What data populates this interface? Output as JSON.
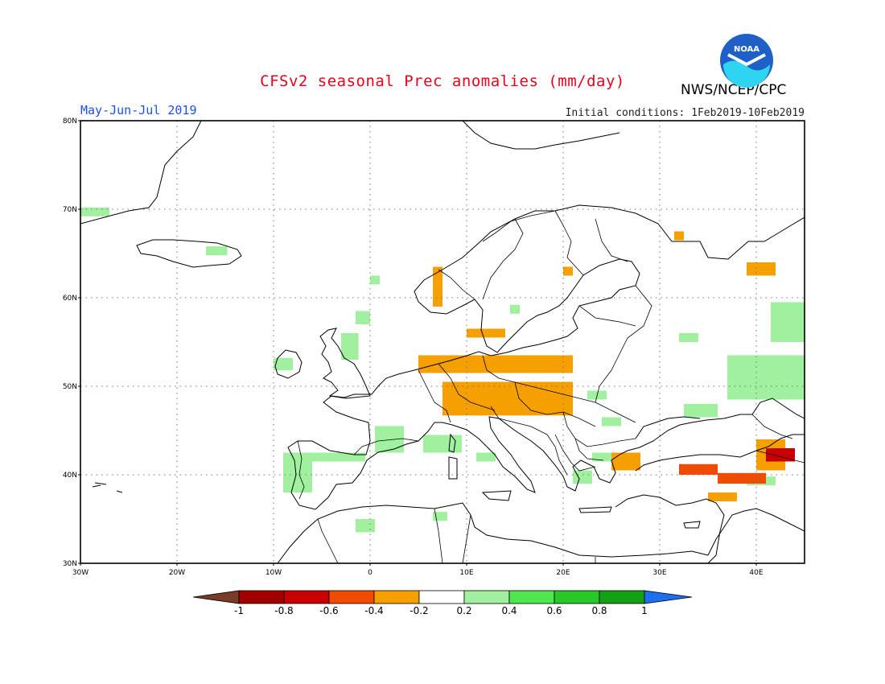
{
  "header": {
    "title": "CFSv2 seasonal Prec anomalies (mm/day)",
    "agency": "NWS/NCEP/CPC",
    "period": "May-Jun-Jul 2019",
    "initial_conditions": "Initial conditions: 1Feb2019-10Feb2019",
    "logo_text": "NOAA",
    "logo_icon": "noaa-logo-icon"
  },
  "map": {
    "lon_range": [
      -30,
      45
    ],
    "lat_range": [
      30,
      80
    ],
    "lon_ticks": [
      {
        "value": -30,
        "label": "30W"
      },
      {
        "value": -20,
        "label": "20W"
      },
      {
        "value": -10,
        "label": "10W"
      },
      {
        "value": 0,
        "label": "0"
      },
      {
        "value": 10,
        "label": "10E"
      },
      {
        "value": 20,
        "label": "20E"
      },
      {
        "value": 30,
        "label": "30E"
      },
      {
        "value": 40,
        "label": "40E"
      }
    ],
    "lat_ticks": [
      {
        "value": 30,
        "label": "30N"
      },
      {
        "value": 40,
        "label": "40N"
      },
      {
        "value": 50,
        "label": "50N"
      },
      {
        "value": 60,
        "label": "60N"
      },
      {
        "value": 70,
        "label": "70N"
      },
      {
        "value": 80,
        "label": "80N"
      }
    ],
    "grid": "dotted",
    "anomaly_regions": [
      {
        "class": "0.2 to 0.4",
        "color": "#a0f0a0",
        "lon": [
          -30,
          -27
        ],
        "lat": [
          69.2,
          70.2
        ]
      },
      {
        "class": "0.2 to 0.4",
        "color": "#a0f0a0",
        "lon": [
          -17,
          -14.8
        ],
        "lat": [
          64.8,
          65.8
        ]
      },
      {
        "class": "0.2 to 0.4",
        "color": "#a0f0a0",
        "lon": [
          -1.5,
          0
        ],
        "lat": [
          57,
          58.5
        ]
      },
      {
        "class": "0.2 to 0.4",
        "color": "#a0f0a0",
        "lon": [
          -3,
          -1.2
        ],
        "lat": [
          53,
          56
        ]
      },
      {
        "class": "0.2 to 0.4",
        "color": "#a0f0a0",
        "lon": [
          -10,
          -8
        ],
        "lat": [
          51.8,
          53.2
        ]
      },
      {
        "class": "0.2 to 0.4",
        "color": "#a0f0a0",
        "lon": [
          0,
          1
        ],
        "lat": [
          61.5,
          62.5
        ]
      },
      {
        "class": "0.2 to 0.4",
        "color": "#a0f0a0",
        "lon": [
          14.5,
          15.5
        ],
        "lat": [
          58.2,
          59.2
        ]
      },
      {
        "class": "0.2 to 0.4",
        "color": "#a0f0a0",
        "lon": [
          0.5,
          3.5
        ],
        "lat": [
          42.5,
          45.5
        ]
      },
      {
        "class": "0.2 to 0.4",
        "color": "#a0f0a0",
        "lon": [
          5.5,
          9.5
        ],
        "lat": [
          42.5,
          44.5
        ]
      },
      {
        "class": "0.2 to 0.4",
        "color": "#a0f0a0",
        "lon": [
          -9,
          -6
        ],
        "lat": [
          38,
          42.5
        ]
      },
      {
        "class": "0.2 to 0.4",
        "color": "#a0f0a0",
        "lon": [
          -6,
          -0.5
        ],
        "lat": [
          41.5,
          42.5
        ]
      },
      {
        "class": "0.2 to 0.4",
        "color": "#a0f0a0",
        "lon": [
          -1.5,
          0.5
        ],
        "lat": [
          33.5,
          35
        ]
      },
      {
        "class": "0.2 to 0.4",
        "color": "#a0f0a0",
        "lon": [
          6.5,
          8
        ],
        "lat": [
          34.8,
          35.8
        ]
      },
      {
        "class": "0.2 to 0.4",
        "color": "#a0f0a0",
        "lon": [
          11,
          13
        ],
        "lat": [
          41.5,
          42.5
        ]
      },
      {
        "class": "0.2 to 0.4",
        "color": "#a0f0a0",
        "lon": [
          22.5,
          24.5
        ],
        "lat": [
          48.5,
          49.5
        ]
      },
      {
        "class": "0.2 to 0.4",
        "color": "#a0f0a0",
        "lon": [
          24,
          26
        ],
        "lat": [
          45.5,
          46.5
        ]
      },
      {
        "class": "0.2 to 0.4",
        "color": "#a0f0a0",
        "lon": [
          23,
          25
        ],
        "lat": [
          41.5,
          42.5
        ]
      },
      {
        "class": "0.2 to 0.4",
        "color": "#a0f0a0",
        "lon": [
          21,
          23
        ],
        "lat": [
          39,
          40.5
        ]
      },
      {
        "class": "0.2 to 0.4",
        "color": "#a0f0a0",
        "lon": [
          32,
          34
        ],
        "lat": [
          55,
          56
        ]
      },
      {
        "class": "0.2 to 0.4",
        "color": "#a0f0a0",
        "lon": [
          37,
          45
        ],
        "lat": [
          48.5,
          53.5
        ]
      },
      {
        "class": "0.2 to 0.4",
        "color": "#a0f0a0",
        "lon": [
          41.5,
          45
        ],
        "lat": [
          55,
          59.5
        ]
      },
      {
        "class": "0.2 to 0.4",
        "color": "#a0f0a0",
        "lon": [
          32.5,
          36
        ],
        "lat": [
          46.5,
          48
        ]
      },
      {
        "class": "0.2 to 0.4",
        "color": "#a0f0a0",
        "lon": [
          39,
          42
        ],
        "lat": [
          38.8,
          39.8
        ]
      },
      {
        "class": "-0.4 to -0.2",
        "color": "#f5a000",
        "lon": [
          6.5,
          7.5
        ],
        "lat": [
          59,
          63.5
        ]
      },
      {
        "class": "-0.4 to -0.2",
        "color": "#f5a000",
        "lon": [
          5,
          21
        ],
        "lat": [
          51.5,
          53.5
        ]
      },
      {
        "class": "-0.4 to -0.2",
        "color": "#f5a000",
        "lon": [
          7.5,
          21
        ],
        "lat": [
          46.7,
          50.5
        ]
      },
      {
        "class": "-0.4 to -0.2",
        "color": "#f5a000",
        "lon": [
          10,
          14
        ],
        "lat": [
          55.5,
          56.5
        ]
      },
      {
        "class": "-0.4 to -0.2",
        "color": "#f5a000",
        "lon": [
          20,
          21
        ],
        "lat": [
          62.5,
          63.5
        ]
      },
      {
        "class": "-0.4 to -0.2",
        "color": "#f5a000",
        "lon": [
          31.5,
          32.5
        ],
        "lat": [
          66.5,
          67.5
        ]
      },
      {
        "class": "-0.4 to -0.2",
        "color": "#f5a000",
        "lon": [
          39,
          42
        ],
        "lat": [
          62.5,
          64
        ]
      },
      {
        "class": "-0.4 to -0.2",
        "color": "#f5a000",
        "lon": [
          25,
          28
        ],
        "lat": [
          40.5,
          42.5
        ]
      },
      {
        "class": "-0.4 to -0.2",
        "color": "#f5a000",
        "lon": [
          35,
          38
        ],
        "lat": [
          37,
          38
        ]
      },
      {
        "class": "-0.4 to -0.2",
        "color": "#f5a000",
        "lon": [
          40,
          43
        ],
        "lat": [
          40.5,
          44
        ]
      },
      {
        "class": "-0.6 to -0.4",
        "color": "#f04b00",
        "lon": [
          32,
          36
        ],
        "lat": [
          40,
          41.2
        ]
      },
      {
        "class": "-0.6 to -0.4",
        "color": "#f04b00",
        "lon": [
          36,
          41
        ],
        "lat": [
          39,
          40.2
        ]
      },
      {
        "class": "-0.8 to -0.6",
        "color": "#c80000",
        "lon": [
          41,
          44
        ],
        "lat": [
          41.5,
          43
        ]
      }
    ]
  },
  "colorbar": {
    "labels": [
      "-1",
      "-0.8",
      "-0.6",
      "-0.4",
      "-0.2",
      "0.2",
      "0.4",
      "0.6",
      "0.8",
      "1"
    ],
    "low_end_color": "#783c28",
    "high_end_color": "#1e6ef0",
    "bins": [
      {
        "range": "-1 to -0.8",
        "color": "#a00000"
      },
      {
        "range": "-0.8 to -0.6",
        "color": "#c80000"
      },
      {
        "range": "-0.6 to -0.4",
        "color": "#f04b00"
      },
      {
        "range": "-0.4 to -0.2",
        "color": "#f5a000"
      },
      {
        "range": "-0.2 to 0.2",
        "color": "#ffffff"
      },
      {
        "range": "0.2 to 0.4",
        "color": "#a0f0a0"
      },
      {
        "range": "0.4 to 0.6",
        "color": "#50e650"
      },
      {
        "range": "0.6 to 0.8",
        "color": "#28c828"
      },
      {
        "range": "0.8 to 1",
        "color": "#14a014"
      }
    ]
  }
}
